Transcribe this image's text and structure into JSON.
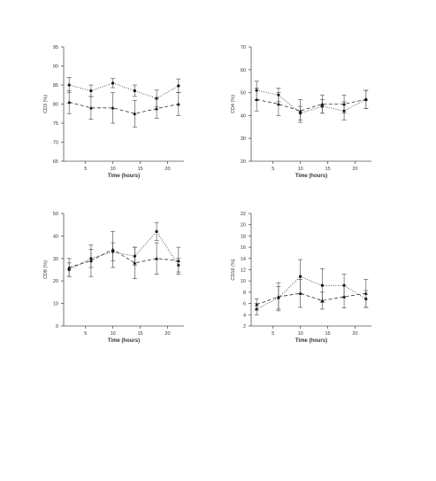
{
  "chart_data": [
    {
      "type": "line",
      "xlabel": "Time (hours)",
      "ylabel": "CD3 (%)",
      "ylim": [
        65,
        95
      ],
      "yticks": [
        65,
        70,
        75,
        80,
        85,
        90,
        95
      ],
      "xlim": [
        1,
        23
      ],
      "xticks": [
        5,
        10,
        15,
        20
      ],
      "grid": false,
      "series": [
        {
          "style": "dotted",
          "marker": "circle",
          "x": [
            2,
            6,
            10,
            14,
            18,
            22
          ],
          "y": [
            85,
            83.5,
            85.5,
            83.5,
            81.5,
            84.8
          ],
          "err": [
            2,
            1.5,
            1.2,
            1.5,
            2.2,
            1.8
          ]
        },
        {
          "style": "dashed",
          "marker": "triangle",
          "x": [
            2,
            6,
            10,
            14,
            18,
            22
          ],
          "y": [
            80.5,
            79,
            79,
            77.5,
            78.8,
            80
          ],
          "err": [
            3,
            3,
            4,
            3.5,
            2.5,
            3
          ]
        }
      ]
    },
    {
      "type": "line",
      "xlabel": "Time (hours)",
      "ylabel": "CD4 (%)",
      "ylim": [
        20,
        70
      ],
      "yticks": [
        20,
        30,
        40,
        50,
        60,
        70
      ],
      "xlim": [
        1,
        23
      ],
      "xticks": [
        5,
        10,
        15,
        20
      ],
      "grid": false,
      "series": [
        {
          "style": "dotted",
          "marker": "circle",
          "x": [
            2,
            6,
            10,
            14,
            18,
            22
          ],
          "y": [
            51,
            49,
            41,
            44,
            42,
            47
          ],
          "err": [
            4,
            3,
            3,
            3,
            4,
            4
          ]
        },
        {
          "style": "dashed",
          "marker": "triangle",
          "x": [
            2,
            6,
            10,
            14,
            18,
            22
          ],
          "y": [
            47,
            45,
            42,
            45,
            45,
            47
          ],
          "err": [
            5,
            5,
            5,
            4,
            4,
            4
          ]
        }
      ]
    },
    {
      "type": "line",
      "xlabel": "Time (hours)",
      "ylabel": "CD8 (%)",
      "ylim": [
        0,
        50
      ],
      "yticks": [
        0,
        10,
        20,
        30,
        40,
        50
      ],
      "xlim": [
        1,
        23
      ],
      "xticks": [
        5,
        10,
        15,
        20
      ],
      "grid": false,
      "series": [
        {
          "style": "dotted",
          "marker": "circle",
          "x": [
            2,
            6,
            10,
            14,
            18,
            22
          ],
          "y": [
            25,
            30,
            33,
            31,
            42,
            27
          ],
          "err": [
            3,
            4,
            4,
            4,
            4,
            3
          ]
        },
        {
          "style": "dashed",
          "marker": "triangle",
          "x": [
            2,
            6,
            10,
            14,
            18,
            22
          ],
          "y": [
            26,
            29,
            34,
            28,
            30,
            29
          ],
          "err": [
            4,
            7,
            8,
            7,
            7,
            6
          ]
        }
      ]
    },
    {
      "type": "line",
      "xlabel": "Time (hours)",
      "ylabel": "CD16 (%)",
      "ylim": [
        2,
        22
      ],
      "yticks": [
        2,
        4,
        6,
        8,
        10,
        12,
        14,
        16,
        18,
        20,
        22
      ],
      "xlim": [
        1,
        23
      ],
      "xticks": [
        5,
        10,
        15,
        20
      ],
      "grid": false,
      "series": [
        {
          "style": "dotted",
          "marker": "circle",
          "x": [
            2,
            6,
            10,
            14,
            18,
            22
          ],
          "y": [
            5,
            7,
            10.8,
            9.2,
            9.2,
            6.8
          ],
          "err": [
            1,
            2,
            3,
            3,
            2,
            1.5
          ]
        },
        {
          "style": "dashed",
          "marker": "triangle",
          "x": [
            2,
            6,
            10,
            14,
            18,
            22
          ],
          "y": [
            5.8,
            7.2,
            7.8,
            6.5,
            7.2,
            7.8
          ],
          "err": [
            1,
            2.5,
            2.5,
            1.5,
            2,
            2.5
          ]
        }
      ]
    }
  ]
}
